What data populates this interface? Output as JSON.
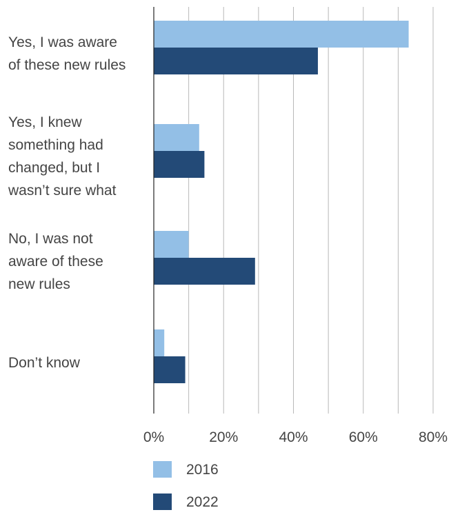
{
  "chart_data": {
    "type": "bar",
    "orientation": "horizontal",
    "categories": [
      [
        "Yes, I was aware",
        "of these new rules"
      ],
      [
        "Yes, I knew",
        "something had",
        "changed, but I",
        "wasn’t sure what"
      ],
      [
        "No, I was not",
        "aware of these",
        "new rules"
      ],
      [
        "Don’t know"
      ]
    ],
    "series": [
      {
        "name": "2016",
        "values": [
          73,
          13,
          10,
          3
        ],
        "color": "#93bfe6"
      },
      {
        "name": "2022",
        "values": [
          47,
          14.5,
          29,
          9
        ],
        "color": "#234a77"
      }
    ],
    "xlim": [
      0,
      80
    ],
    "x_ticks": [
      0,
      20,
      40,
      60,
      80
    ],
    "x_tick_labels": [
      "0%",
      "20%",
      "40%",
      "60%",
      "80%"
    ],
    "grid": true,
    "legend_position": "bottom"
  }
}
